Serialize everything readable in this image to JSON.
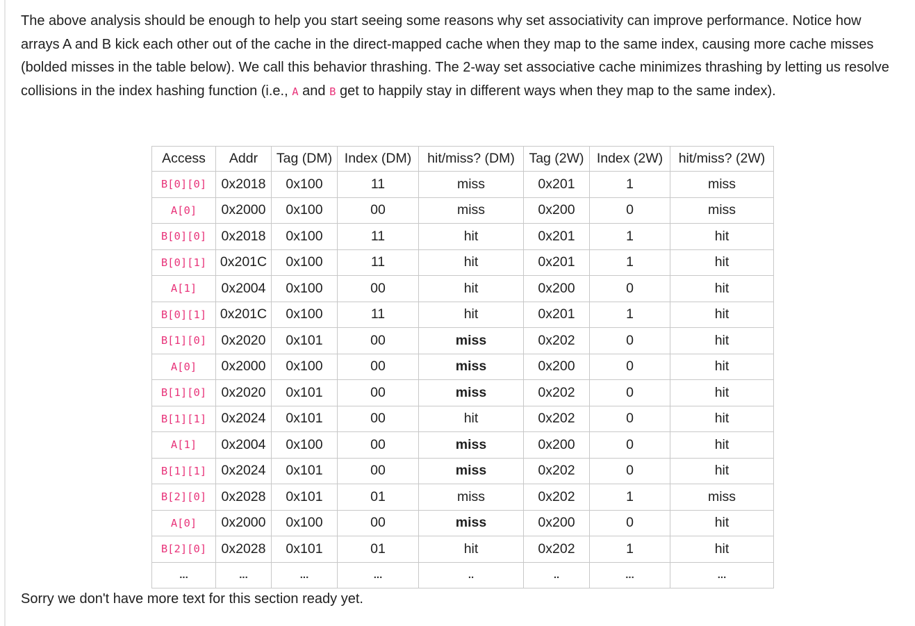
{
  "intro": {
    "part1": "The above analysis should be enough to help you start seeing some reasons why set associativity can improve performance. Notice how arrays A and B kick each other out of the cache in the direct-mapped cache when they map to the same index, causing more cache misses (bolded misses in the table below). We call this behavior thrashing. The 2-way set associative cache minimizes thrashing by letting us resolve collisions in the index hashing function (i.e., ",
    "code_a": "A",
    "part2": " and ",
    "code_b": "B",
    "part3": " get to happily stay in different ways when they map to the same index)."
  },
  "table": {
    "headers": [
      "Access",
      "Addr",
      "Tag (DM)",
      "Index (DM)",
      "hit/miss? (DM)",
      "Tag (2W)",
      "Index (2W)",
      "hit/miss? (2W)"
    ],
    "rows": [
      {
        "access": "B[0][0]",
        "addr": "0x2018",
        "tag_dm": "0x100",
        "idx_dm": "11",
        "hm_dm": "miss",
        "hm_dm_bold": false,
        "tag_2w": "0x201",
        "idx_2w": "1",
        "hm_2w": "miss"
      },
      {
        "access": "A[0]",
        "addr": "0x2000",
        "tag_dm": "0x100",
        "idx_dm": "00",
        "hm_dm": "miss",
        "hm_dm_bold": false,
        "tag_2w": "0x200",
        "idx_2w": "0",
        "hm_2w": "miss"
      },
      {
        "access": "B[0][0]",
        "addr": "0x2018",
        "tag_dm": "0x100",
        "idx_dm": "11",
        "hm_dm": "hit",
        "hm_dm_bold": false,
        "tag_2w": "0x201",
        "idx_2w": "1",
        "hm_2w": "hit"
      },
      {
        "access": "B[0][1]",
        "addr": "0x201C",
        "tag_dm": "0x100",
        "idx_dm": "11",
        "hm_dm": "hit",
        "hm_dm_bold": false,
        "tag_2w": "0x201",
        "idx_2w": "1",
        "hm_2w": "hit"
      },
      {
        "access": "A[1]",
        "addr": "0x2004",
        "tag_dm": "0x100",
        "idx_dm": "00",
        "hm_dm": "hit",
        "hm_dm_bold": false,
        "tag_2w": "0x200",
        "idx_2w": "0",
        "hm_2w": "hit"
      },
      {
        "access": "B[0][1]",
        "addr": "0x201C",
        "tag_dm": "0x100",
        "idx_dm": "11",
        "hm_dm": "hit",
        "hm_dm_bold": false,
        "tag_2w": "0x201",
        "idx_2w": "1",
        "hm_2w": "hit"
      },
      {
        "access": "B[1][0]",
        "addr": "0x2020",
        "tag_dm": "0x101",
        "idx_dm": "00",
        "hm_dm": "miss",
        "hm_dm_bold": true,
        "tag_2w": "0x202",
        "idx_2w": "0",
        "hm_2w": "hit"
      },
      {
        "access": "A[0]",
        "addr": "0x2000",
        "tag_dm": "0x100",
        "idx_dm": "00",
        "hm_dm": "miss",
        "hm_dm_bold": true,
        "tag_2w": "0x200",
        "idx_2w": "0",
        "hm_2w": "hit"
      },
      {
        "access": "B[1][0]",
        "addr": "0x2020",
        "tag_dm": "0x101",
        "idx_dm": "00",
        "hm_dm": "miss",
        "hm_dm_bold": true,
        "tag_2w": "0x202",
        "idx_2w": "0",
        "hm_2w": "hit"
      },
      {
        "access": "B[1][1]",
        "addr": "0x2024",
        "tag_dm": "0x101",
        "idx_dm": "00",
        "hm_dm": "hit",
        "hm_dm_bold": false,
        "tag_2w": "0x202",
        "idx_2w": "0",
        "hm_2w": "hit"
      },
      {
        "access": "A[1]",
        "addr": "0x2004",
        "tag_dm": "0x100",
        "idx_dm": "00",
        "hm_dm": "miss",
        "hm_dm_bold": true,
        "tag_2w": "0x200",
        "idx_2w": "0",
        "hm_2w": "hit"
      },
      {
        "access": "B[1][1]",
        "addr": "0x2024",
        "tag_dm": "0x101",
        "idx_dm": "00",
        "hm_dm": "miss",
        "hm_dm_bold": true,
        "tag_2w": "0x202",
        "idx_2w": "0",
        "hm_2w": "hit"
      },
      {
        "access": "B[2][0]",
        "addr": "0x2028",
        "tag_dm": "0x101",
        "idx_dm": "01",
        "hm_dm": "miss",
        "hm_dm_bold": false,
        "tag_2w": "0x202",
        "idx_2w": "1",
        "hm_2w": "miss"
      },
      {
        "access": "A[0]",
        "addr": "0x2000",
        "tag_dm": "0x100",
        "idx_dm": "00",
        "hm_dm": "miss",
        "hm_dm_bold": true,
        "tag_2w": "0x200",
        "idx_2w": "0",
        "hm_2w": "hit"
      },
      {
        "access": "B[2][0]",
        "addr": "0x2028",
        "tag_dm": "0x101",
        "idx_dm": "01",
        "hm_dm": "hit",
        "hm_dm_bold": false,
        "tag_2w": "0x202",
        "idx_2w": "1",
        "hm_2w": "hit"
      }
    ],
    "ellipsis_row": [
      "...",
      "...",
      "...",
      "...",
      "..",
      "..",
      "...",
      "..."
    ]
  },
  "footer": "Sorry we don't have more text for this section ready yet."
}
